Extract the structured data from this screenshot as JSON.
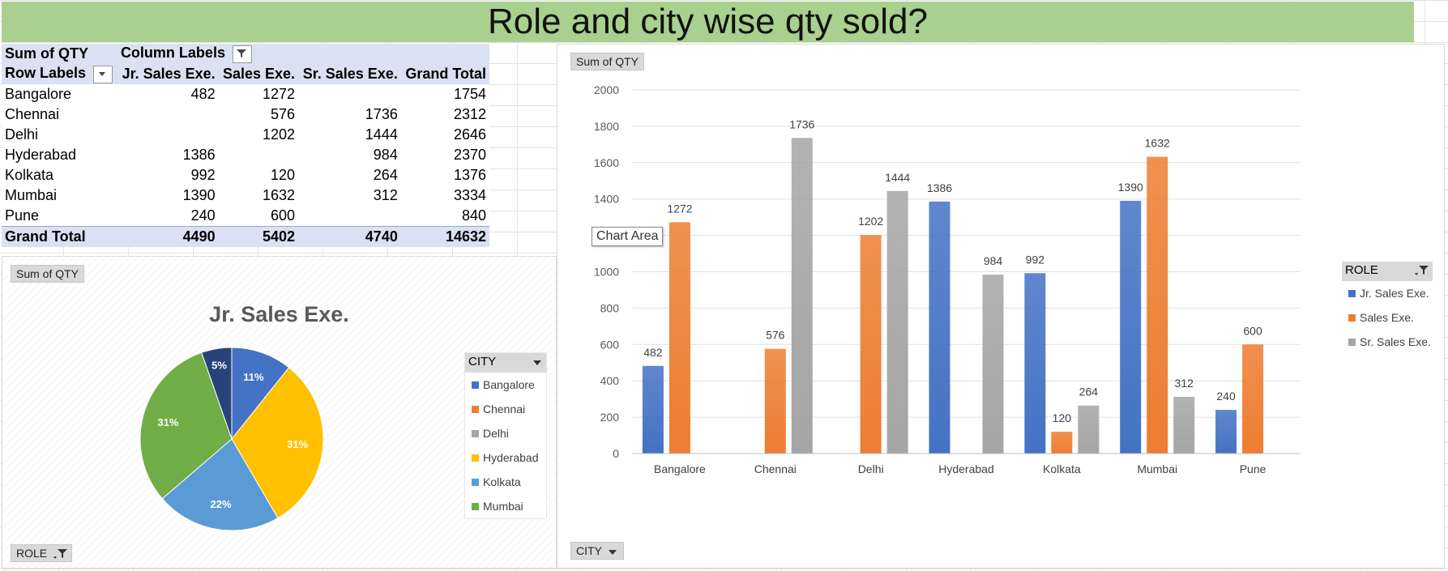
{
  "title": "Role and city wise qty sold?",
  "pivot": {
    "corner_label": "Sum of QTY",
    "column_labels": "Column Labels",
    "row_labels": "Row Labels",
    "columns": [
      "Jr. Sales Exe.",
      "Sales Exe.",
      "Sr. Sales Exe.",
      "Grand Total"
    ],
    "rows": [
      {
        "label": "Bangalore",
        "values": [
          "482",
          "1272",
          "",
          "1754"
        ]
      },
      {
        "label": "Chennai",
        "values": [
          "",
          "576",
          "1736",
          "2312"
        ]
      },
      {
        "label": "Delhi",
        "values": [
          "",
          "1202",
          "1444",
          "2646"
        ]
      },
      {
        "label": "Hyderabad",
        "values": [
          "1386",
          "",
          "984",
          "2370"
        ]
      },
      {
        "label": "Kolkata",
        "values": [
          "992",
          "120",
          "264",
          "1376"
        ]
      },
      {
        "label": "Mumbai",
        "values": [
          "1390",
          "1632",
          "312",
          "3334"
        ]
      },
      {
        "label": "Pune",
        "values": [
          "240",
          "600",
          "",
          "840"
        ]
      }
    ],
    "total": {
      "label": "Grand Total",
      "values": [
        "4490",
        "5402",
        "4740",
        "14632"
      ]
    }
  },
  "pie_panel": {
    "value_button": "Sum of QTY",
    "filter_button": "ROLE",
    "legend_title": "CITY"
  },
  "bar_panel": {
    "value_button": "Sum of QTY",
    "axis_button": "CITY",
    "legend_title": "ROLE",
    "tooltip": "Chart Area"
  },
  "colors": {
    "title_band": "#a9d08e",
    "pivot_header": "#d9e1f2",
    "jr": "#4472c4",
    "sales": "#ed7d31",
    "sr": "#a5a5a5"
  },
  "chart_data": [
    {
      "type": "pie",
      "title": "Jr. Sales Exe.",
      "categories": [
        "Bangalore",
        "Chennai",
        "Delhi",
        "Hyderabad",
        "Kolkata",
        "Mumbai",
        "Pune"
      ],
      "values": [
        482,
        0,
        0,
        1386,
        992,
        1390,
        240
      ],
      "data_labels": [
        "11%",
        "",
        "",
        "31%",
        "22%",
        "31%",
        "5%"
      ],
      "legend_entries": [
        "Bangalore",
        "Chennai",
        "Delhi",
        "Hyderabad",
        "Kolkata",
        "Mumbai"
      ],
      "colors": [
        "#4472c4",
        "#ed7d31",
        "#a5a5a5",
        "#ffc000",
        "#5b9bd5",
        "#70ad47",
        "#264478"
      ],
      "legend": "right"
    },
    {
      "type": "bar",
      "categories": [
        "Bangalore",
        "Chennai",
        "Delhi",
        "Hyderabad",
        "Kolkata",
        "Mumbai",
        "Pune"
      ],
      "series": [
        {
          "name": "Jr. Sales Exe.",
          "values": [
            482,
            null,
            null,
            1386,
            992,
            1390,
            240
          ],
          "color": "#4472c4"
        },
        {
          "name": "Sales Exe.",
          "values": [
            1272,
            576,
            1202,
            null,
            120,
            1632,
            600
          ],
          "color": "#ed7d31"
        },
        {
          "name": "Sr. Sales Exe.",
          "values": [
            null,
            1736,
            1444,
            984,
            264,
            312,
            null
          ],
          "color": "#a5a5a5"
        }
      ],
      "data_labels": [
        [
          "482",
          "",
          "",
          "1386",
          "992",
          "1390",
          "240"
        ],
        [
          "1272",
          "576",
          "1202",
          "",
          "120",
          "1632",
          "600"
        ],
        [
          "",
          "1736",
          "1444",
          "984",
          "264",
          "312",
          ""
        ]
      ],
      "yticks": [
        "0",
        "200",
        "400",
        "600",
        "800",
        "1000",
        "1200",
        "1400",
        "1600",
        "1800",
        "2000"
      ],
      "ylim": [
        0,
        2000
      ],
      "grid": true,
      "legend": "right"
    }
  ]
}
